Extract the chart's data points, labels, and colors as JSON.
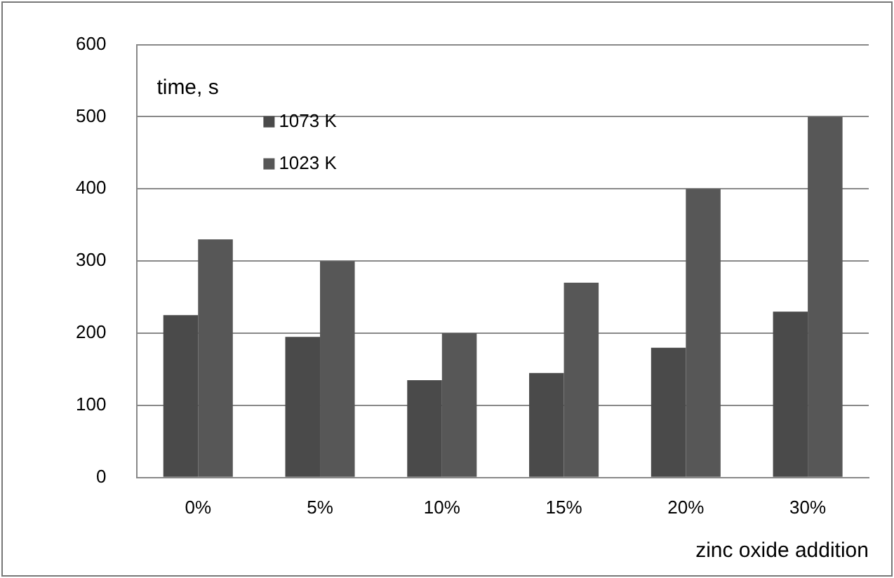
{
  "chart_data": {
    "type": "bar",
    "xlabel": "zinc oxide addition",
    "ylabel": "time, s",
    "categories": [
      "0%",
      "5%",
      "10%",
      "15%",
      "20%",
      "30%"
    ],
    "series": [
      {
        "name": "1073 K",
        "color": "#4a4a4a",
        "values": [
          225,
          195,
          135,
          145,
          180,
          230
        ]
      },
      {
        "name": "1023 K",
        "color": "#575757",
        "values": [
          330,
          300,
          200,
          270,
          400,
          500
        ]
      }
    ],
    "ylim": [
      0,
      600
    ],
    "yticks": [
      0,
      100,
      200,
      300,
      400,
      500,
      600
    ],
    "grid": "y",
    "legend": "top left"
  }
}
